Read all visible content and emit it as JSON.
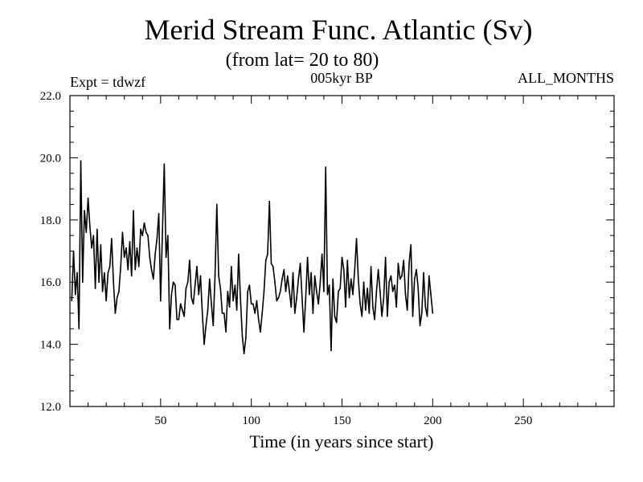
{
  "chart_data": {
    "type": "line",
    "title": "Merid Stream Func. Atlantic (Sv)",
    "subtitle": "(from lat= 20 to 80)",
    "annotations": {
      "experiment": "Expt = tdwzf",
      "period": "005kyr BP",
      "months": "ALL_MONTHS"
    },
    "xlabel": "Time (in years since start)",
    "ylabel": "",
    "xlim": [
      0,
      300
    ],
    "ylim": [
      12.0,
      22.0
    ],
    "x_ticks": [
      50,
      100,
      150,
      200,
      250
    ],
    "x_tick_labels": [
      "50",
      "100",
      "150",
      "200",
      "250"
    ],
    "y_ticks": [
      12.0,
      14.0,
      16.0,
      18.0,
      20.0,
      22.0
    ],
    "y_tick_labels": [
      "12.0",
      "14.0",
      "16.0",
      "18.0",
      "20.0",
      "22.0"
    ],
    "grid": false,
    "colors": {
      "line": "#000000",
      "background": "#ffffff"
    },
    "series": [
      {
        "x_start": 1,
        "x_step": 1,
        "values": [
          15.4,
          17.0,
          15.6,
          16.3,
          14.5,
          19.9,
          16.0,
          18.3,
          17.6,
          18.7,
          17.8,
          17.1,
          17.5,
          15.8,
          17.7,
          16.0,
          17.2,
          15.7,
          16.3,
          15.4,
          16.3,
          16.5,
          17.4,
          16.0,
          15.0,
          15.5,
          15.7,
          16.5,
          17.6,
          16.8,
          17.1,
          16.4,
          17.3,
          16.2,
          18.3,
          16.4,
          17.1,
          16.5,
          17.7,
          17.5,
          17.9,
          17.6,
          17.5,
          16.8,
          16.4,
          16.1,
          16.9,
          17.4,
          18.2,
          15.4,
          17.6,
          19.8,
          16.8,
          17.5,
          14.5,
          15.6,
          16.0,
          15.9,
          14.8,
          14.8,
          15.3,
          15.1,
          14.9,
          15.8,
          16.0,
          16.7,
          15.5,
          15.3,
          15.9,
          16.5,
          15.6,
          16.2,
          15.0,
          14.0,
          14.6,
          15.1,
          16.1,
          15.3,
          14.6,
          16.2,
          18.5,
          16.2,
          15.8,
          15.0,
          15.0,
          14.4,
          15.7,
          15.2,
          16.5,
          15.4,
          15.9,
          15.1,
          16.9,
          15.5,
          14.3,
          13.7,
          14.2,
          15.7,
          15.9,
          15.3,
          15.3,
          15.0,
          15.4,
          14.8,
          14.4,
          15.0,
          15.7,
          16.7,
          16.9,
          18.6,
          16.6,
          16.5,
          16.0,
          15.4,
          15.5,
          15.7,
          16.1,
          16.4,
          15.7,
          16.2,
          15.7,
          15.2,
          16.3,
          15.0,
          15.5,
          16.1,
          16.6,
          15.5,
          14.4,
          15.5,
          16.8,
          15.6,
          16.3,
          15.0,
          16.2,
          15.7,
          15.3,
          16.0,
          16.9,
          15.7,
          19.7,
          15.6,
          15.9,
          13.8,
          16.1,
          14.9,
          14.7,
          15.7,
          15.8,
          16.8,
          16.4,
          15.2,
          16.7,
          15.5,
          16.1,
          15.6,
          16.4,
          17.4,
          16.1,
          15.3,
          14.9,
          16.0,
          15.1,
          15.8,
          15.0,
          16.5,
          15.2,
          14.8,
          15.7,
          16.4,
          15.7,
          14.9,
          15.5,
          16.8,
          14.9,
          16.0,
          16.2,
          15.7,
          15.9,
          15.2,
          16.6,
          16.1,
          16.2,
          16.7,
          15.6,
          15.1,
          16.6,
          17.2,
          14.9,
          16.1,
          16.4,
          15.8,
          14.6,
          15.0,
          16.3,
          15.2,
          14.9,
          16.2,
          15.6,
          15.0
        ]
      }
    ]
  }
}
